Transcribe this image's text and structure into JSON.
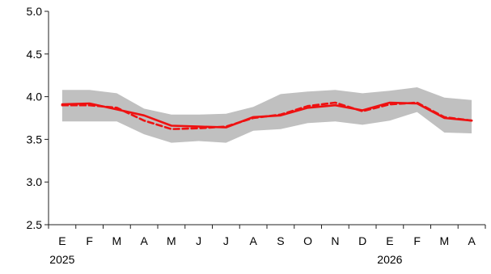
{
  "chart_data": {
    "type": "line",
    "title": "",
    "xlabel": "",
    "ylabel": "",
    "categories": [
      "E",
      "F",
      "M",
      "A",
      "M",
      "J",
      "J",
      "A",
      "S",
      "O",
      "N",
      "D",
      "E",
      "F",
      "M",
      "A"
    ],
    "year_labels": [
      {
        "label": "2025",
        "index": 0
      },
      {
        "label": "2026",
        "index": 12
      }
    ],
    "ylim": [
      2.5,
      5.0
    ],
    "yticks": [
      "2.5",
      "3.0",
      "3.5",
      "4.0",
      "4.5",
      "5.0"
    ],
    "ytick_values": [
      2.5,
      3.0,
      3.5,
      4.0,
      4.5,
      5.0
    ],
    "grid": false,
    "band": {
      "color": "#c0c0c0",
      "upper": [
        4.08,
        4.08,
        4.04,
        3.86,
        3.79,
        3.79,
        3.8,
        3.88,
        4.03,
        4.06,
        4.08,
        4.04,
        4.07,
        4.11,
        3.99,
        3.96
      ],
      "lower": [
        3.71,
        3.71,
        3.71,
        3.56,
        3.46,
        3.48,
        3.46,
        3.6,
        3.62,
        3.69,
        3.71,
        3.67,
        3.72,
        3.82,
        3.58,
        3.57
      ]
    },
    "series": [
      {
        "style": "solid",
        "color": "#ee1111",
        "values": [
          3.91,
          3.92,
          3.85,
          3.78,
          3.66,
          3.65,
          3.64,
          3.76,
          3.78,
          3.87,
          3.9,
          3.84,
          3.93,
          3.92,
          3.75,
          3.72
        ]
      },
      {
        "style": "dashed",
        "color": "#ee1111",
        "values": [
          3.9,
          3.9,
          3.87,
          3.72,
          3.62,
          3.63,
          3.65,
          3.75,
          3.79,
          3.89,
          3.93,
          3.83,
          3.91,
          3.93,
          3.76,
          3.72
        ]
      }
    ]
  }
}
